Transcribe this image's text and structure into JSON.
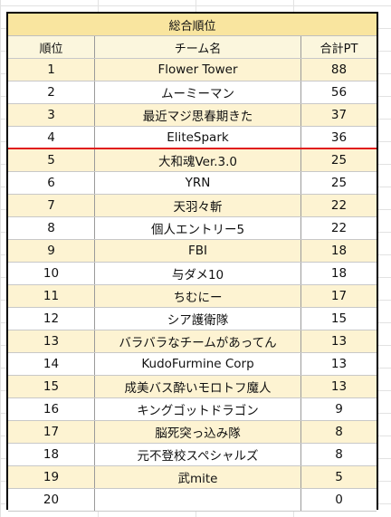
{
  "table": {
    "title": "総合順位",
    "headers": {
      "rank": "順位",
      "team": "チーム名",
      "points": "合計PT"
    },
    "rows": [
      {
        "rank": "1",
        "team": "Flower Tower",
        "points": "88"
      },
      {
        "rank": "2",
        "team": "ムーミーマン",
        "points": "56"
      },
      {
        "rank": "3",
        "team": "最近マジ思春期きた",
        "points": "37"
      },
      {
        "rank": "4",
        "team": "EliteSpark",
        "points": "36"
      },
      {
        "rank": "5",
        "team": "大和魂Ver.3.0",
        "points": "25"
      },
      {
        "rank": "6",
        "team": "YRN",
        "points": "25"
      },
      {
        "rank": "7",
        "team": "天羽々斬",
        "points": "22"
      },
      {
        "rank": "8",
        "team": "個人エントリー5",
        "points": "22"
      },
      {
        "rank": "9",
        "team": "FBI",
        "points": "18"
      },
      {
        "rank": "10",
        "team": "与ダメ10",
        "points": "18"
      },
      {
        "rank": "11",
        "team": "ちむにー",
        "points": "17"
      },
      {
        "rank": "12",
        "team": "シア護衛隊",
        "points": "15"
      },
      {
        "rank": "13",
        "team": "バラバラなチームがあってん",
        "points": "13"
      },
      {
        "rank": "14",
        "team": "KudoFurmine Corp",
        "points": "13"
      },
      {
        "rank": "15",
        "team": "成美バス酔いモロトフ魔人",
        "points": "13"
      },
      {
        "rank": "16",
        "team": "キングゴットドラゴン",
        "points": "9"
      },
      {
        "rank": "17",
        "team": "脳死突っ込み隊",
        "points": "8"
      },
      {
        "rank": "18",
        "team": "元不登校スペシャルズ",
        "points": "8"
      },
      {
        "rank": "19",
        "team": "武mite",
        "points": "5"
      },
      {
        "rank": "20",
        "team": "",
        "points": "0"
      }
    ]
  },
  "colors": {
    "title_bg": "#f9e59f",
    "header_bg": "#fbf6dd",
    "odd_row_bg": "#fdf3d2",
    "cutline": "#e01d1d"
  }
}
